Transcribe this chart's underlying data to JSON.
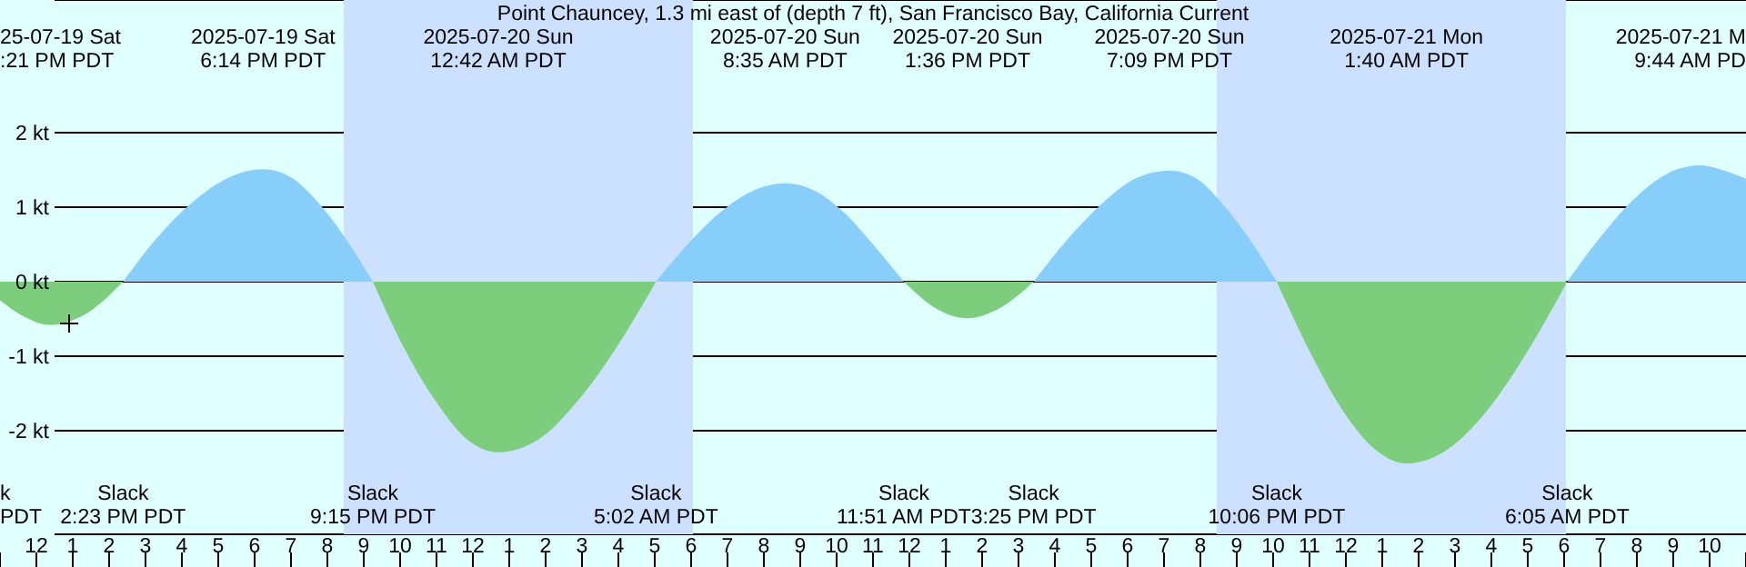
{
  "chart_data": {
    "type": "area",
    "title": "Point Chauncey, 1.3 mi east of (depth 7 ft), San Francisco Bay, California Current",
    "x": [
      "2025-07-19T11:00",
      "2025-07-19T11:42",
      "2025-07-19T12:21",
      "2025-07-19T13:24",
      "2025-07-19T14:23",
      "2025-07-19T15:18",
      "2025-07-19T16:18",
      "2025-07-19T17:18",
      "2025-07-19T18:14",
      "2025-07-19T19:00",
      "2025-07-19T19:44",
      "2025-07-19T20:30",
      "2025-07-19T21:15",
      "2025-07-19T22:06",
      "2025-07-19T23:00",
      "2025-07-19T23:51",
      "2025-07-20T00:42",
      "2025-07-20T01:48",
      "2025-07-20T02:51",
      "2025-07-20T03:57",
      "2025-07-20T05:02",
      "2025-07-20T05:54",
      "2025-07-20T06:48",
      "2025-07-20T07:42",
      "2025-07-20T08:35",
      "2025-07-20T09:24",
      "2025-07-20T10:12",
      "2025-07-20T11:00",
      "2025-07-20T11:51",
      "2025-07-20T12:42",
      "2025-07-20T13:36",
      "2025-07-20T14:30",
      "2025-07-20T15:25",
      "2025-07-20T16:21",
      "2025-07-20T17:18",
      "2025-07-20T18:12",
      "2025-07-20T19:09",
      "2025-07-20T19:54",
      "2025-07-20T20:36",
      "2025-07-20T21:21",
      "2025-07-20T22:06",
      "2025-07-20T23:00",
      "2025-07-20T23:54",
      "2025-07-21T00:48",
      "2025-07-21T01:40",
      "2025-07-21T02:48",
      "2025-07-21T03:54",
      "2025-07-21T05:00",
      "2025-07-21T06:05",
      "2025-07-21T07:00",
      "2025-07-21T07:54",
      "2025-07-21T08:48",
      "2025-07-21T09:44",
      "2025-07-21T10:24",
      "2025-07-21T11:00"
    ],
    "series": [
      {
        "color": "#87cefa",
        "values": [
          null,
          null,
          null,
          null,
          0,
          0.58,
          1.07,
          1.4,
          1.51,
          1.4,
          1.07,
          0.58,
          0,
          null,
          null,
          null,
          null,
          null,
          null,
          null,
          0,
          0.5,
          0.93,
          1.22,
          1.32,
          1.22,
          0.93,
          0.5,
          0,
          null,
          null,
          null,
          0,
          0.57,
          1.05,
          1.38,
          1.49,
          1.38,
          1.05,
          0.57,
          0,
          null,
          null,
          null,
          null,
          null,
          null,
          null,
          0,
          0.6,
          1.1,
          1.44,
          1.56,
          1.49,
          1.38
        ]
      },
      {
        "color": "#7ccd7c",
        "values": [
          -0.25,
          -0.48,
          -0.58,
          -0.42,
          0,
          null,
          null,
          null,
          null,
          null,
          null,
          null,
          0,
          -0.88,
          -1.62,
          -2.12,
          -2.29,
          -2.12,
          -1.62,
          -0.88,
          0,
          null,
          null,
          null,
          null,
          null,
          null,
          null,
          0,
          -0.35,
          -0.49,
          -0.35,
          0,
          null,
          null,
          null,
          null,
          null,
          null,
          null,
          0,
          -0.93,
          -1.72,
          -2.25,
          -2.44,
          -2.25,
          -1.72,
          -0.93,
          0,
          null,
          null,
          null,
          null,
          null,
          null
        ]
      },
      {
        "type": "scatter",
        "marker": "cross",
        "color": "#000000",
        "x": [
          "2025-07-19T12:54"
        ],
        "values": [
          -0.56
        ]
      }
    ],
    "xlim": [
      "2025-07-19T11:00",
      "2025-07-21T11:00"
    ],
    "xticks": [
      {
        "value": "2025-07-19T11:00",
        "label": null
      },
      {
        "value": "2025-07-19T12:00",
        "label": "12"
      },
      {
        "value": "2025-07-19T13:00",
        "label": "1"
      },
      {
        "value": "2025-07-19T14:00",
        "label": "2"
      },
      {
        "value": "2025-07-19T15:00",
        "label": "3"
      },
      {
        "value": "2025-07-19T16:00",
        "label": "4"
      },
      {
        "value": "2025-07-19T17:00",
        "label": "5"
      },
      {
        "value": "2025-07-19T18:00",
        "label": "6"
      },
      {
        "value": "2025-07-19T19:00",
        "label": "7"
      },
      {
        "value": "2025-07-19T20:00",
        "label": "8"
      },
      {
        "value": "2025-07-19T21:00",
        "label": "9"
      },
      {
        "value": "2025-07-19T22:00",
        "label": "10"
      },
      {
        "value": "2025-07-19T23:00",
        "label": "11"
      },
      {
        "value": "2025-07-20T00:00",
        "label": "12"
      },
      {
        "value": "2025-07-20T01:00",
        "label": "1"
      },
      {
        "value": "2025-07-20T02:00",
        "label": "2"
      },
      {
        "value": "2025-07-20T03:00",
        "label": "3"
      },
      {
        "value": "2025-07-20T04:00",
        "label": "4"
      },
      {
        "value": "2025-07-20T05:00",
        "label": "5"
      },
      {
        "value": "2025-07-20T06:00",
        "label": "6"
      },
      {
        "value": "2025-07-20T07:00",
        "label": "7"
      },
      {
        "value": "2025-07-20T08:00",
        "label": "8"
      },
      {
        "value": "2025-07-20T09:00",
        "label": "9"
      },
      {
        "value": "2025-07-20T10:00",
        "label": "10"
      },
      {
        "value": "2025-07-20T11:00",
        "label": "11"
      },
      {
        "value": "2025-07-20T12:00",
        "label": "12"
      },
      {
        "value": "2025-07-20T13:00",
        "label": "1"
      },
      {
        "value": "2025-07-20T14:00",
        "label": "2"
      },
      {
        "value": "2025-07-20T15:00",
        "label": "3"
      },
      {
        "value": "2025-07-20T16:00",
        "label": "4"
      },
      {
        "value": "2025-07-20T17:00",
        "label": "5"
      },
      {
        "value": "2025-07-20T18:00",
        "label": "6"
      },
      {
        "value": "2025-07-20T19:00",
        "label": "7"
      },
      {
        "value": "2025-07-20T20:00",
        "label": "8"
      },
      {
        "value": "2025-07-20T21:00",
        "label": "9"
      },
      {
        "value": "2025-07-20T22:00",
        "label": "10"
      },
      {
        "value": "2025-07-20T23:00",
        "label": "11"
      },
      {
        "value": "2025-07-21T00:00",
        "label": "12"
      },
      {
        "value": "2025-07-21T01:00",
        "label": "1"
      },
      {
        "value": "2025-07-21T02:00",
        "label": "2"
      },
      {
        "value": "2025-07-21T03:00",
        "label": "3"
      },
      {
        "value": "2025-07-21T04:00",
        "label": "4"
      },
      {
        "value": "2025-07-21T05:00",
        "label": "5"
      },
      {
        "value": "2025-07-21T06:00",
        "label": "6"
      },
      {
        "value": "2025-07-21T07:00",
        "label": "7"
      },
      {
        "value": "2025-07-21T08:00",
        "label": "8"
      },
      {
        "value": "2025-07-21T09:00",
        "label": "9"
      },
      {
        "value": "2025-07-21T10:00",
        "label": "10"
      },
      {
        "value": "2025-07-21T11:00",
        "label": null
      }
    ],
    "ylim": [
      -3.39,
      3.78
    ],
    "yticks": [
      {
        "value": 2,
        "label": "2 kt"
      },
      {
        "value": 1,
        "label": "1 kt"
      },
      {
        "value": 0,
        "label": "0 kt"
      },
      {
        "value": -1,
        "label": "-1 kt"
      },
      {
        "value": -2,
        "label": "-2 kt"
      }
    ],
    "grid": "y",
    "bands": [
      {
        "axis": "x",
        "from": "2025-07-19T20:27",
        "to": "2025-07-20T06:03",
        "color": "#cce0ff"
      },
      {
        "axis": "x",
        "from": "2025-07-20T20:27",
        "to": "2025-07-21T06:03",
        "color": "#cce0ff"
      }
    ],
    "annotations": [
      "k",
      "PDT",
      "25-07-19 Sat",
      ":21 PM PDT",
      "Slack",
      "2:23 PM PDT",
      "2025-07-19 Sat",
      "6:14 PM PDT",
      "Slack",
      "9:15 PM PDT",
      "2025-07-20 Sun",
      "12:42 AM PDT",
      "Slack",
      "5:02 AM PDT",
      "2025-07-20 Sun",
      "8:35 AM PDT",
      "Slack",
      "11:51 AM PDT",
      "2025-07-20 Sun",
      "1:36 PM PDT",
      "Slack",
      "3:25 PM PDT",
      "2025-07-20 Sun",
      "7:09 PM PDT",
      "Slack",
      "10:06 PM PDT",
      "2025-07-21 Mon",
      "1:40 AM PDT",
      "Slack",
      "6:05 AM PDT",
      "2025-07-21 M",
      "9:44 AM PD"
    ]
  }
}
